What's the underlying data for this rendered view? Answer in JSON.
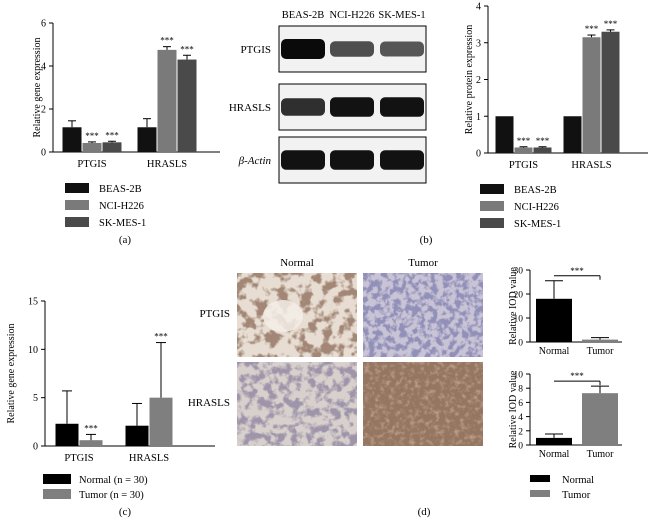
{
  "colors": {
    "beas": "#111111",
    "nci": "#7a7a7a",
    "skmes": "#4a4a4a",
    "normal": "#000000",
    "tumor": "#7f7f7f"
  },
  "panels": {
    "a": "(a)",
    "b": "(b)",
    "c": "(c)",
    "d": "(d)"
  },
  "sig": "***",
  "chart_data": [
    {
      "id": "a",
      "type": "bar",
      "ylabel": "Relative gene expression",
      "ylim": [
        0,
        6
      ],
      "yticks": [
        0,
        2,
        4,
        6
      ],
      "categories": [
        "PTGIS",
        "HRASLS"
      ],
      "series": [
        {
          "name": "BEAS-2B",
          "values": [
            1.15,
            1.15
          ],
          "errors": [
            0.3,
            0.4
          ],
          "sig": [
            "",
            ""
          ]
        },
        {
          "name": "NCI-H226",
          "values": [
            0.42,
            4.75
          ],
          "errors": [
            0.05,
            0.15
          ],
          "sig": [
            "***",
            "***"
          ]
        },
        {
          "name": "SK-MES-1",
          "values": [
            0.45,
            4.3
          ],
          "errors": [
            0.05,
            0.2
          ],
          "sig": [
            "***",
            "***"
          ]
        }
      ],
      "legend": "below"
    },
    {
      "id": "b",
      "type": "bar",
      "ylabel": "Relative protein expression",
      "ylim": [
        0,
        4
      ],
      "yticks": [
        0,
        1,
        2,
        3,
        4
      ],
      "categories": [
        "PTGIS",
        "HRASLS"
      ],
      "series": [
        {
          "name": "BEAS-2B",
          "values": [
            1.0,
            1.0
          ],
          "errors": [
            0,
            0
          ],
          "sig": [
            "",
            ""
          ]
        },
        {
          "name": "NCI-H226",
          "values": [
            0.15,
            3.15
          ],
          "errors": [
            0.02,
            0.06
          ],
          "sig": [
            "***",
            "***"
          ]
        },
        {
          "name": "SK-MES-1",
          "values": [
            0.15,
            3.3
          ],
          "errors": [
            0.02,
            0.05
          ],
          "sig": [
            "***",
            "***"
          ]
        }
      ],
      "legend": "below"
    },
    {
      "id": "c",
      "type": "bar",
      "ylabel": "Relative gene expression",
      "ylim": [
        0,
        15
      ],
      "yticks": [
        0,
        5,
        10,
        15
      ],
      "categories": [
        "PTGIS",
        "HRASLS"
      ],
      "series": [
        {
          "name": "Normal",
          "n": "(n = 30)",
          "values": [
            2.3,
            2.1
          ],
          "errors": [
            3.4,
            2.3
          ],
          "sig": [
            "",
            ""
          ]
        },
        {
          "name": "Tumor",
          "n": "(n = 30)",
          "values": [
            0.6,
            5.0
          ],
          "errors": [
            0.6,
            5.7
          ],
          "sig": [
            "***",
            "***"
          ]
        }
      ],
      "legend": "below"
    },
    {
      "id": "d1",
      "type": "bar",
      "ylabel": "Relative IOD value",
      "ylim": [
        0,
        30
      ],
      "yticks": [
        0,
        10,
        20,
        30
      ],
      "categories": [
        "Normal",
        "Tumor"
      ],
      "values": [
        18,
        1.0
      ],
      "errors": [
        7.5,
        0.8
      ],
      "sig": "***"
    },
    {
      "id": "d2",
      "type": "bar",
      "ylabel": "Relative IOD value",
      "ylim": [
        0,
        10
      ],
      "yticks": [
        0,
        2,
        4,
        6,
        8,
        10
      ],
      "categories": [
        "Normal",
        "Tumor"
      ],
      "values": [
        1.0,
        7.3
      ],
      "errors": [
        0.55,
        1.0
      ],
      "sig": "***",
      "legend_entries": [
        "Normal",
        "Tumor"
      ]
    }
  ],
  "blot": {
    "columns": [
      "BEAS-2B",
      "NCI-H226",
      "SK-MES-1"
    ],
    "rows": [
      "PTGIS",
      "HRASLS",
      "β-Actin"
    ],
    "intensity": [
      [
        1.0,
        0.55,
        0.5
      ],
      [
        0.75,
        0.95,
        0.95
      ],
      [
        0.95,
        0.95,
        0.95
      ]
    ]
  },
  "ihc": {
    "cols": [
      "Normal",
      "Tumor"
    ],
    "rows": [
      "PTGIS",
      "HRASLS"
    ]
  }
}
